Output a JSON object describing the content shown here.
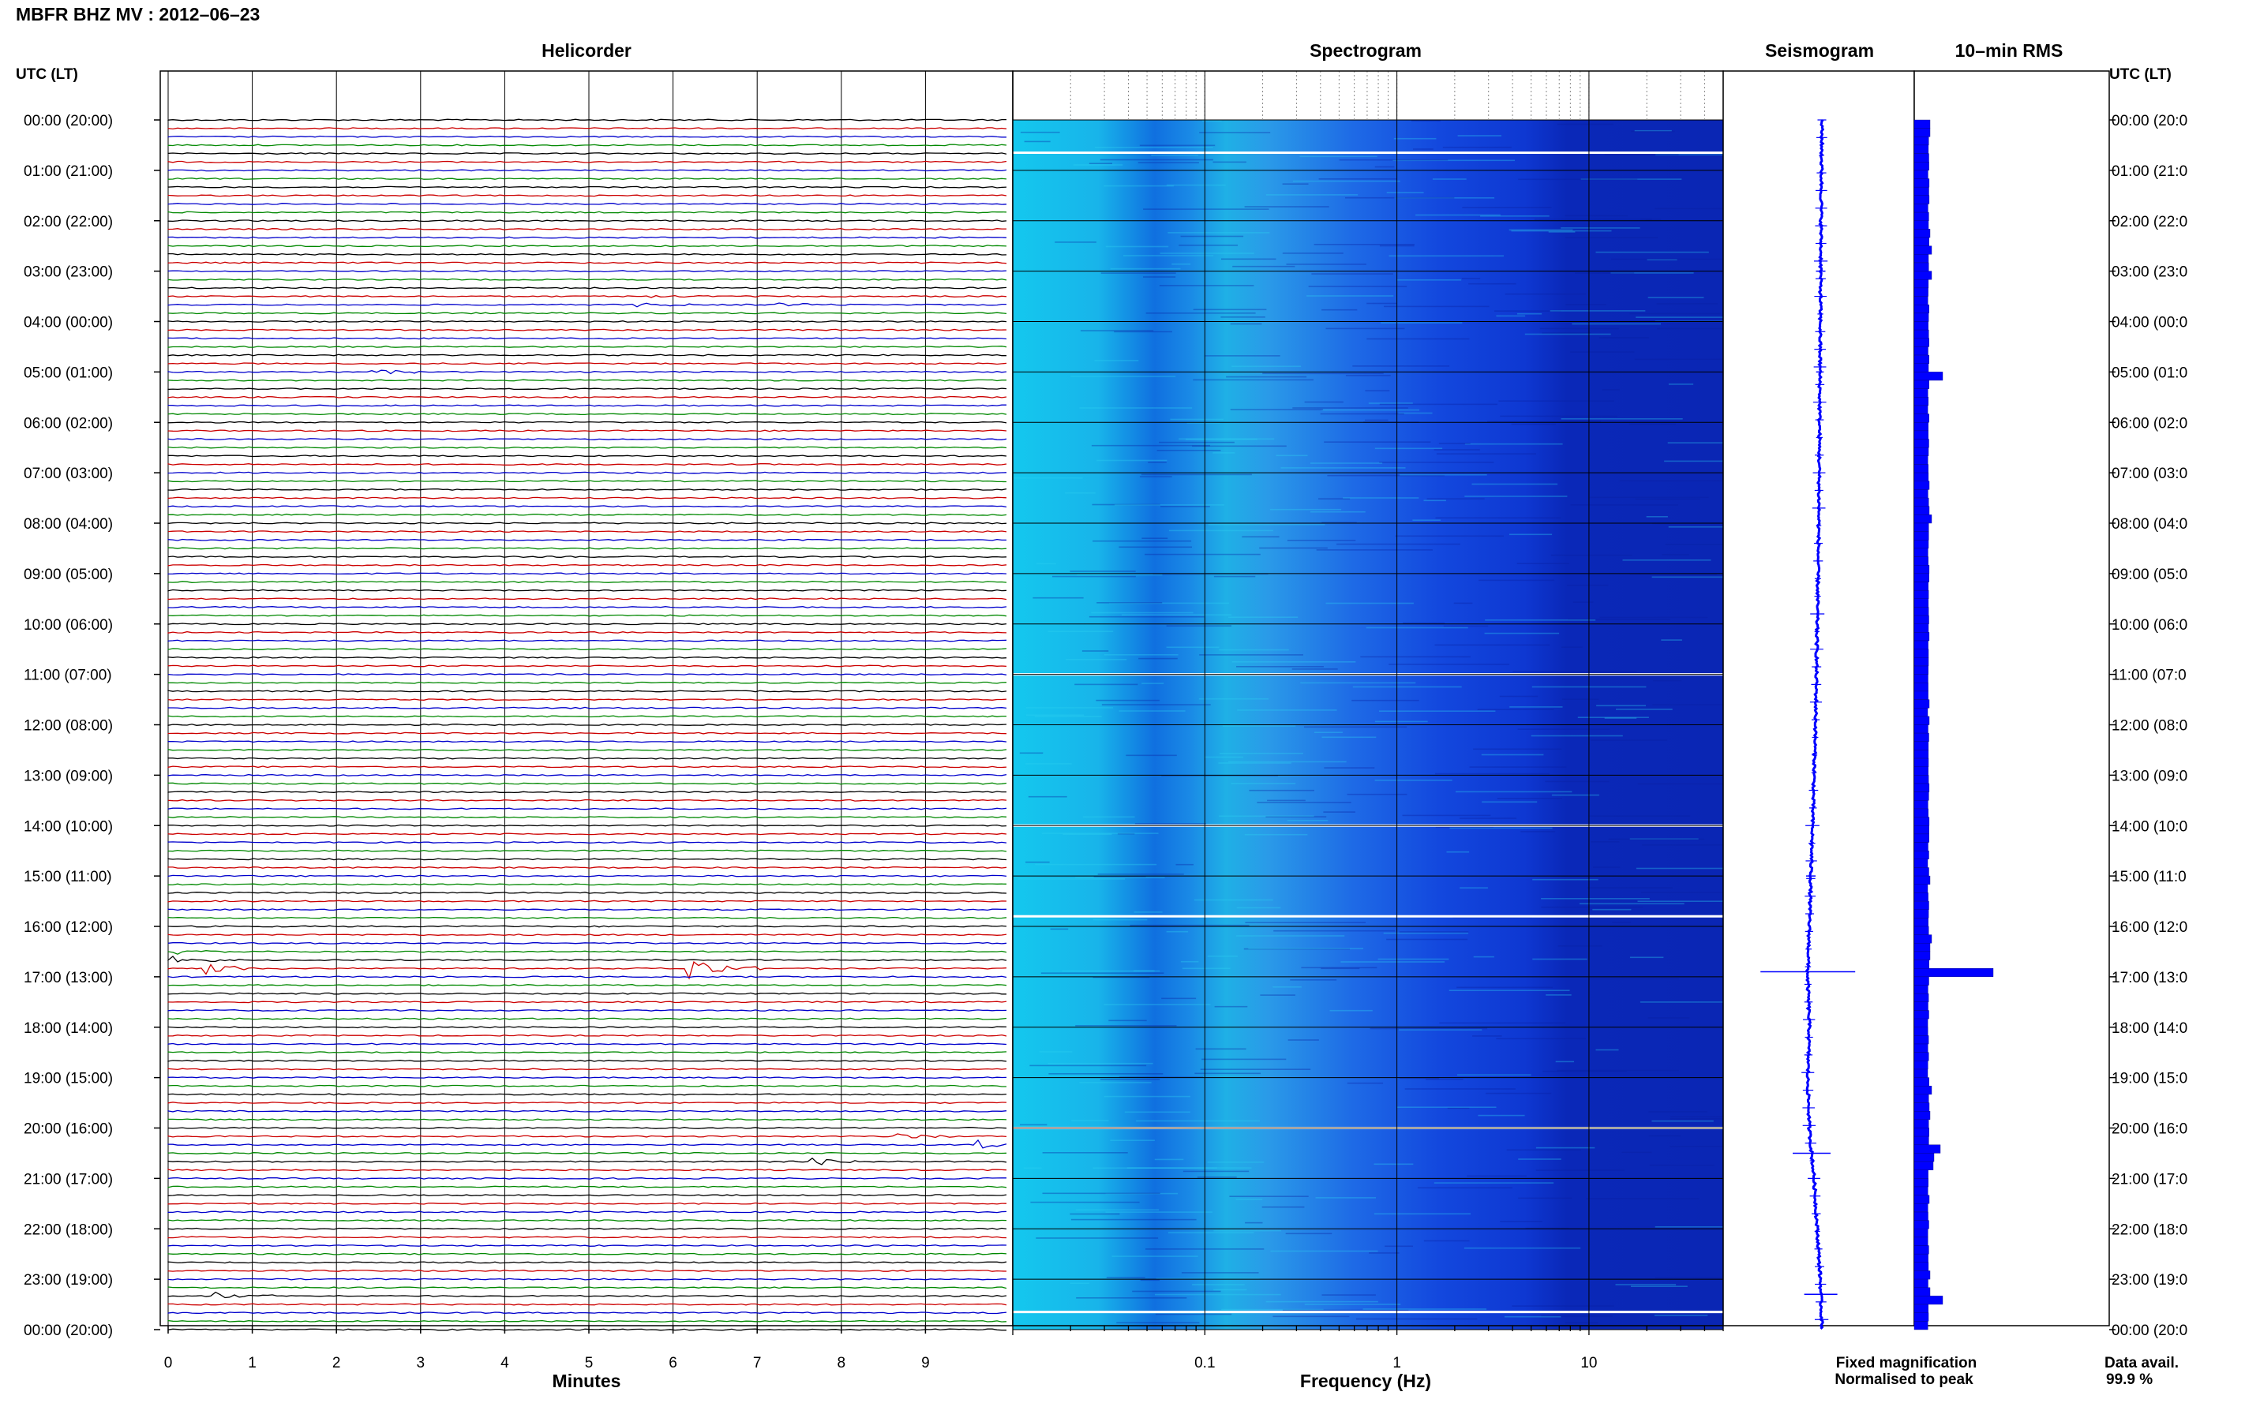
{
  "header": {
    "title": "MBFR BHZ MV : 2012–06–23"
  },
  "time_axis": {
    "left_title": "UTC (LT)",
    "right_title": "UTC (LT)",
    "left_labels": [
      "00:00 (20:00)",
      "01:00 (21:00)",
      "02:00 (22:00)",
      "03:00 (23:00)",
      "04:00 (00:00)",
      "05:00 (01:00)",
      "06:00 (02:00)",
      "07:00 (03:00)",
      "08:00 (04:00)",
      "09:00 (05:00)",
      "10:00 (06:00)",
      "11:00 (07:00)",
      "12:00 (08:00)",
      "13:00 (09:00)",
      "14:00 (10:00)",
      "15:00 (11:00)",
      "16:00 (12:00)",
      "17:00 (13:00)",
      "18:00 (14:00)",
      "19:00 (15:00)",
      "20:00 (16:00)",
      "21:00 (17:00)",
      "22:00 (18:00)",
      "23:00 (19:00)",
      "00:00 (20:00)"
    ],
    "right_labels": [
      "00:00 (20:0",
      "01:00 (21:0",
      "02:00 (22:0",
      "03:00 (23:0",
      "04:00 (00:0",
      "05:00 (01:0",
      "06:00 (02:0",
      "07:00 (03:0",
      "08:00 (04:0",
      "09:00 (05:0",
      "10:00 (06:0",
      "11:00 (07:0",
      "12:00 (08:0",
      "13:00 (09:0",
      "14:00 (10:0",
      "15:00 (11:0",
      "16:00 (12:0",
      "17:00 (13:0",
      "18:00 (14:0",
      "19:00 (15:0",
      "20:00 (16:0",
      "21:00 (17:0",
      "22:00 (18:0",
      "23:00 (19:0",
      "00:00 (20:0"
    ]
  },
  "legend": {
    "fixed": "Fixed magnification",
    "normalised": "Normalised to peak",
    "avail_label": "Data avail.",
    "avail_value": "99.9 %"
  },
  "colors": {
    "trace_cycle": [
      "#000000",
      "#cc0000",
      "#0000cc",
      "#008800"
    ],
    "fixed": "#0000ff",
    "normalised": "#ff0000",
    "bars": "#0000ff"
  },
  "chart_data": [
    {
      "type": "line",
      "title": "Helicorder",
      "xlabel": "Minutes",
      "ylabel": "",
      "x_ticks": [
        0,
        1,
        2,
        3,
        4,
        5,
        6,
        7,
        8,
        9
      ],
      "xlim": [
        0,
        10
      ],
      "ylim": [
        0,
        24
      ],
      "rows_per_hour": 6,
      "events": [
        {
          "hour": 16.8,
          "minute": 6.2,
          "amp": 1.0
        },
        {
          "hour": 16.85,
          "minute": 0.5,
          "amp": 0.4
        },
        {
          "hour": 16.6,
          "minute": 0.1,
          "amp": 0.25
        },
        {
          "hour": 20.3,
          "minute": 9.6,
          "amp": 0.35
        },
        {
          "hour": 20.15,
          "minute": 8.7,
          "amp": 0.25
        },
        {
          "hour": 20.65,
          "minute": 7.7,
          "amp": 0.3
        },
        {
          "hour": 23.3,
          "minute": 0.6,
          "amp": 0.4
        },
        {
          "hour": 5.0,
          "minute": 2.4,
          "amp": 0.3
        },
        {
          "hour": 3.6,
          "minute": 5.6,
          "amp": 0.2
        },
        {
          "hour": 3.65,
          "minute": 7.2,
          "amp": 0.2
        }
      ]
    },
    {
      "type": "heatmap",
      "title": "Spectrogram",
      "xlabel": "Frequency (Hz)",
      "ylabel": "",
      "x_scale": "log",
      "xlim": [
        0.01,
        50
      ],
      "x_ticks": [
        0.1,
        1,
        10
      ],
      "x_tick_labels": [
        "0.1",
        "1",
        "10"
      ],
      "ylim": [
        0,
        24
      ],
      "gaps_hours": [
        0.65,
        11.0,
        14.0,
        15.8,
        20.0,
        23.65
      ]
    },
    {
      "type": "line",
      "title": "Seismogram",
      "xlabel": "",
      "ylabel": "",
      "ylim": [
        0,
        24
      ],
      "trend_offset": [
        [
          0,
          0.0
        ],
        [
          4,
          -0.05
        ],
        [
          8,
          -0.1
        ],
        [
          12,
          -0.2
        ],
        [
          14,
          -0.3
        ],
        [
          16,
          -0.4
        ],
        [
          17,
          -0.45
        ],
        [
          18,
          -0.4
        ],
        [
          19,
          -0.45
        ],
        [
          20,
          -0.4
        ],
        [
          21,
          -0.25
        ],
        [
          22,
          -0.15
        ],
        [
          23,
          -0.05
        ],
        [
          24,
          0.0
        ]
      ],
      "spikes": [
        {
          "hour": 16.9,
          "size": 1.0
        },
        {
          "hour": 20.5,
          "size": 0.4
        },
        {
          "hour": 23.3,
          "size": 0.35
        },
        {
          "hour": 15.0,
          "size": 0.1
        },
        {
          "hour": 3.0,
          "size": 0.1
        },
        {
          "hour": 5.0,
          "size": 0.08
        }
      ]
    },
    {
      "type": "bar",
      "title": "10–min RMS",
      "xlabel": "",
      "ylabel": "",
      "orientation": "horizontal",
      "ylim": [
        0,
        24
      ],
      "bins_per_hour": 6,
      "base_value": 0.18,
      "peaks": [
        {
          "hour": 16.83,
          "value": 1.0
        },
        {
          "hour": 20.33,
          "value": 0.33
        },
        {
          "hour": 20.5,
          "value": 0.25
        },
        {
          "hour": 23.33,
          "value": 0.36
        },
        {
          "hour": 5.0,
          "value": 0.36
        },
        {
          "hour": 0.0,
          "value": 0.2
        },
        {
          "hour": 0.17,
          "value": 0.2
        },
        {
          "hour": 2.17,
          "value": 0.2
        },
        {
          "hour": 2.5,
          "value": 0.22
        },
        {
          "hour": 3.0,
          "value": 0.22
        },
        {
          "hour": 7.83,
          "value": 0.22
        },
        {
          "hour": 15.0,
          "value": 0.2
        },
        {
          "hour": 16.17,
          "value": 0.22
        },
        {
          "hour": 16.33,
          "value": 0.2
        },
        {
          "hour": 16.5,
          "value": 0.2
        },
        {
          "hour": 19.17,
          "value": 0.22
        },
        {
          "hour": 19.67,
          "value": 0.2
        },
        {
          "hour": 20.67,
          "value": 0.24
        },
        {
          "hour": 22.83,
          "value": 0.2
        },
        {
          "hour": 23.17,
          "value": 0.2
        }
      ]
    }
  ]
}
